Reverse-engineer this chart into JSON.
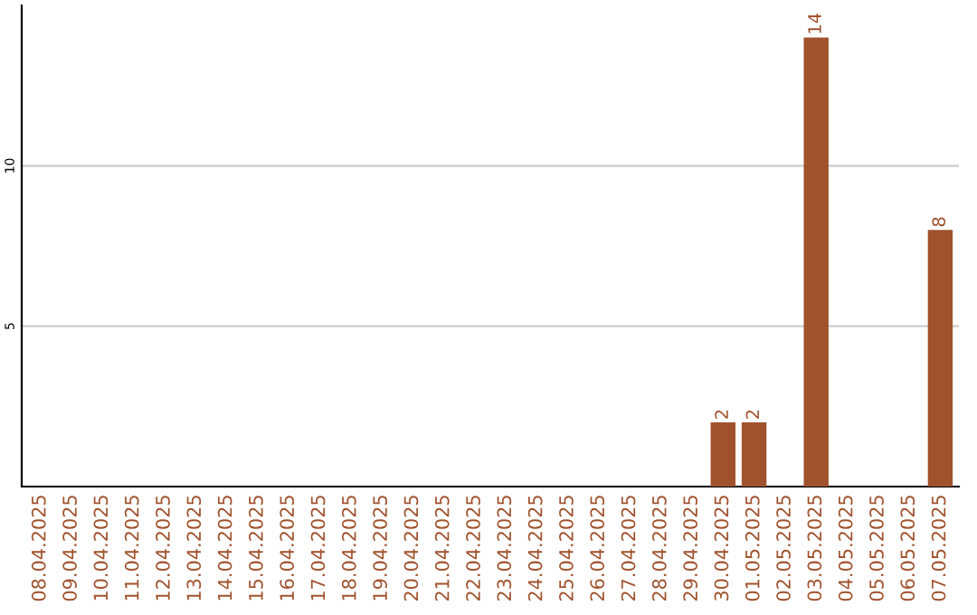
{
  "chart_data": {
    "type": "bar",
    "categories": [
      "08.04.2025",
      "09.04.2025",
      "10.04.2025",
      "11.04.2025",
      "12.04.2025",
      "13.04.2025",
      "14.04.2025",
      "15.04.2025",
      "16.04.2025",
      "17.04.2025",
      "18.04.2025",
      "19.04.2025",
      "20.04.2025",
      "21.04.2025",
      "22.04.2025",
      "23.04.2025",
      "24.04.2025",
      "25.04.2025",
      "26.04.2025",
      "27.04.2025",
      "28.04.2025",
      "29.04.2025",
      "30.04.2025",
      "01.05.2025",
      "02.05.2025",
      "03.05.2025",
      "04.05.2025",
      "05.05.2025",
      "06.05.2025",
      "07.05.2025"
    ],
    "values": [
      0,
      0,
      0,
      0,
      0,
      0,
      0,
      0,
      0,
      0,
      0,
      0,
      0,
      0,
      0,
      0,
      0,
      0,
      0,
      0,
      0,
      0,
      2,
      2,
      0,
      14,
      0,
      0,
      0,
      8
    ],
    "value_labels": [
      null,
      null,
      null,
      null,
      null,
      null,
      null,
      null,
      null,
      null,
      null,
      null,
      null,
      null,
      null,
      null,
      null,
      null,
      null,
      null,
      null,
      null,
      "2",
      "2",
      null,
      "14",
      null,
      null,
      null,
      "8"
    ],
    "color": "#a0522d",
    "ylim": [
      0,
      15
    ],
    "yticks": [
      5,
      10
    ],
    "grid": "y"
  }
}
